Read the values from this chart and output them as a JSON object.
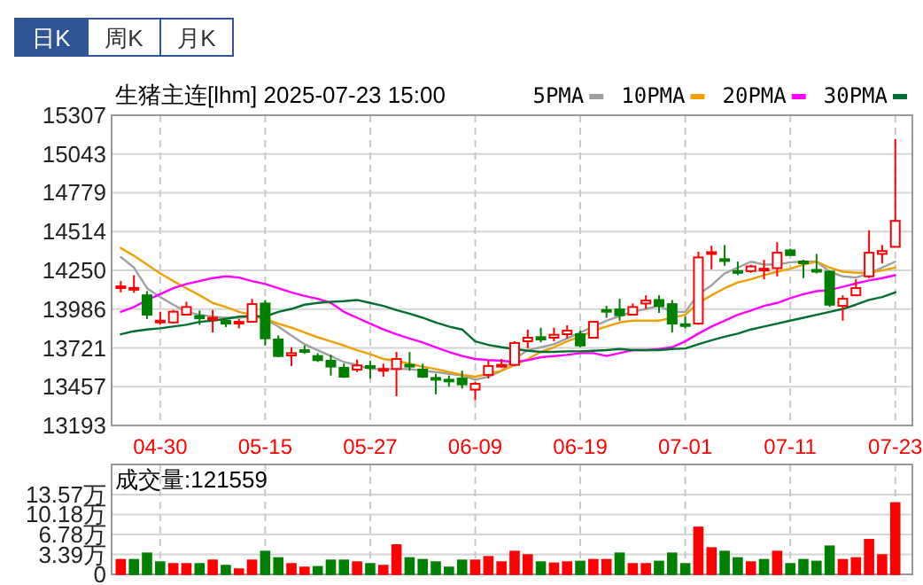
{
  "chart_data": [
    {
      "type": "candlestick",
      "title": "生猪主连[lhm] 2025-07-23 15:00",
      "annotations": [
        "日K",
        "周K",
        "月K"
      ],
      "categories": [
        null,
        null,
        null,
        "04-30",
        null,
        null,
        null,
        null,
        null,
        null,
        null,
        "05-15",
        null,
        null,
        null,
        null,
        null,
        null,
        null,
        "05-27",
        null,
        null,
        null,
        null,
        null,
        null,
        null,
        "06-09",
        null,
        null,
        null,
        null,
        null,
        null,
        null,
        "06-19",
        null,
        null,
        null,
        null,
        null,
        null,
        null,
        "07-01",
        null,
        null,
        null,
        null,
        null,
        null,
        null,
        "07-11",
        null,
        null,
        null,
        null,
        null,
        null,
        null,
        "07-23"
      ],
      "ohlc": [
        [
          14135,
          14177,
          14100,
          14141
        ],
        [
          14122,
          14217,
          14097,
          14130
        ],
        [
          14080,
          14108,
          13919,
          13948
        ],
        [
          13899,
          13968,
          13879,
          13907
        ],
        [
          13895,
          13980,
          13887,
          13968
        ],
        [
          13948,
          14036,
          13944,
          14000
        ],
        [
          13939,
          13976,
          13879,
          13923
        ],
        [
          13915,
          13980,
          13827,
          13927
        ],
        [
          13907,
          13927,
          13863,
          13887
        ],
        [
          13887,
          13919,
          13855,
          13899
        ],
        [
          13899,
          14056,
          13895,
          14020
        ],
        [
          14024,
          14048,
          13738,
          13787
        ],
        [
          13779,
          13807,
          13658,
          13666
        ],
        [
          13670,
          13726,
          13598,
          13686
        ],
        [
          13706,
          13738,
          13682,
          13694
        ],
        [
          13666,
          13686,
          13626,
          13638
        ],
        [
          13634,
          13674,
          13533,
          13594
        ],
        [
          13586,
          13614,
          13517,
          13525
        ],
        [
          13574,
          13642,
          13557,
          13602
        ],
        [
          13598,
          13634,
          13513,
          13586
        ],
        [
          13570,
          13614,
          13525,
          13578
        ],
        [
          13578,
          13694,
          13392,
          13646
        ],
        [
          13606,
          13694,
          13566,
          13598
        ],
        [
          13574,
          13614,
          13517,
          13525
        ],
        [
          13517,
          13545,
          13405,
          13513
        ],
        [
          13505,
          13533,
          13457,
          13497
        ],
        [
          13513,
          13566,
          13445,
          13473
        ],
        [
          13437,
          13489,
          13365,
          13477
        ],
        [
          13537,
          13638,
          13513,
          13598
        ],
        [
          13598,
          13646,
          13586,
          13606
        ],
        [
          13606,
          13767,
          13598,
          13755
        ],
        [
          13767,
          13847,
          13718,
          13791
        ],
        [
          13795,
          13859,
          13759,
          13779
        ],
        [
          13791,
          13859,
          13767,
          13811
        ],
        [
          13815,
          13875,
          13787,
          13839
        ],
        [
          13815,
          13839,
          13726,
          13738
        ],
        [
          13791,
          13907,
          13787,
          13899
        ],
        [
          13980,
          14008,
          13927,
          13972
        ],
        [
          13984,
          14056,
          13907,
          13944
        ],
        [
          13948,
          14024,
          13944,
          14000
        ],
        [
          14024,
          14080,
          13988,
          14044
        ],
        [
          14048,
          14080,
          13960,
          14008
        ],
        [
          14020,
          14048,
          13827,
          13887
        ],
        [
          13883,
          13935,
          13855,
          13875
        ],
        [
          13887,
          14378,
          13879,
          14338
        ],
        [
          14362,
          14418,
          14257,
          14374
        ],
        [
          14326,
          14422,
          14281,
          14318
        ],
        [
          14245,
          14310,
          14217,
          14241
        ],
        [
          14245,
          14289,
          14233,
          14277
        ],
        [
          14249,
          14322,
          14189,
          14261
        ],
        [
          14265,
          14442,
          14209,
          14370
        ],
        [
          14386,
          14398,
          14350,
          14354
        ],
        [
          14310,
          14322,
          14197,
          14302
        ],
        [
          14253,
          14362,
          14229,
          14249
        ],
        [
          14241,
          14245,
          14000,
          14016
        ],
        [
          14008,
          14080,
          13907,
          14056
        ],
        [
          14080,
          14189,
          14076,
          14129
        ],
        [
          14209,
          14523,
          14197,
          14370
        ],
        [
          14362,
          14422,
          14297,
          14382
        ],
        [
          14410,
          15146,
          14410,
          14587
        ]
      ],
      "series": [
        {
          "name": "5PMA",
          "type": "line",
          "color": "#a0a0a0",
          "values": [
            14341,
            14269,
            14128,
            14068,
            14016,
            13967,
            13947,
            13935,
            13927,
            13927,
            13935,
            13919,
            13867,
            13806,
            13746,
            13706,
            13666,
            13625,
            13605,
            13577,
            13577,
            13577,
            13577,
            13565,
            13557,
            13545,
            13533,
            13505,
            13525,
            13565,
            13646,
            13706,
            13726,
            13746,
            13786,
            13827,
            13867,
            13907,
            13939,
            13967,
            13987,
            14008,
            13967,
            13967,
            14088,
            14148,
            14229,
            14269,
            14309,
            14289,
            14289,
            14305,
            14309,
            14309,
            14241,
            14209,
            14201,
            14229,
            14269,
            14309
          ]
        },
        {
          "name": "10PMA",
          "type": "line",
          "color": "#f0a000",
          "values": [
            14402,
            14350,
            14289,
            14229,
            14177,
            14128,
            14080,
            14028,
            14000,
            13967,
            13947,
            13919,
            13887,
            13859,
            13827,
            13794,
            13766,
            13738,
            13706,
            13678,
            13646,
            13634,
            13613,
            13593,
            13577,
            13557,
            13537,
            13525,
            13545,
            13565,
            13605,
            13646,
            13694,
            13726,
            13766,
            13798,
            13839,
            13867,
            13895,
            13907,
            13907,
            13907,
            13927,
            13947,
            14028,
            14080,
            14128,
            14168,
            14189,
            14217,
            14241,
            14261,
            14289,
            14309,
            14269,
            14241,
            14233,
            14233,
            14249,
            14269
          ]
        },
        {
          "name": "20PMA",
          "type": "line",
          "color": "#ff00ff",
          "values": [
            13967,
            14000,
            14048,
            14088,
            14128,
            14157,
            14177,
            14197,
            14209,
            14201,
            14177,
            14157,
            14128,
            14100,
            14076,
            14056,
            14028,
            13967,
            13927,
            13887,
            13847,
            13814,
            13786,
            13758,
            13726,
            13694,
            13666,
            13646,
            13638,
            13634,
            13625,
            13638,
            13658,
            13666,
            13674,
            13686,
            13686,
            13666,
            13686,
            13706,
            13706,
            13714,
            13726,
            13766,
            13819,
            13867,
            13907,
            13947,
            13976,
            14008,
            14028,
            14060,
            14088,
            14108,
            14116,
            14137,
            14161,
            14181,
            14197,
            14217
          ]
        },
        {
          "name": "30PMA",
          "type": "line",
          "color": "#006f2f",
          "values": [
            13814,
            13835,
            13847,
            13855,
            13867,
            13879,
            13899,
            13907,
            13919,
            13935,
            13939,
            13935,
            13967,
            13987,
            14016,
            14028,
            14036,
            14040,
            14048,
            14028,
            14008,
            13979,
            13955,
            13927,
            13895,
            13867,
            13847,
            13766,
            13742,
            13726,
            13714,
            13702,
            13694,
            13694,
            13698,
            13698,
            13702,
            13706,
            13714,
            13706,
            13706,
            13706,
            13714,
            13718,
            13746,
            13774,
            13798,
            13819,
            13847,
            13867,
            13887,
            13907,
            13927,
            13947,
            13967,
            13987,
            14016,
            14048,
            14068,
            14100
          ]
        }
      ],
      "ylim": [
        13193,
        15307
      ],
      "yticks": [
        13193,
        13457,
        13721,
        13986,
        14250,
        14514,
        14779,
        15043,
        15307
      ],
      "grid": true,
      "legend": "top right"
    },
    {
      "type": "bar",
      "title": "成交量:121559",
      "categories": [
        null,
        null,
        null,
        null,
        null,
        null,
        null,
        null,
        null,
        null,
        null,
        null,
        null,
        null,
        null,
        null,
        null,
        null,
        null,
        null,
        null,
        null,
        null,
        null,
        null,
        null,
        null,
        null,
        null,
        null,
        null,
        null,
        null,
        null,
        null,
        null,
        null,
        null,
        null,
        null,
        null,
        null,
        null,
        null,
        null,
        null,
        null,
        null,
        null,
        null,
        null,
        null,
        null,
        null,
        null,
        null,
        null,
        null,
        null,
        null
      ],
      "values": [
        2.5,
        2.5,
        3.6,
        2.1,
        1.8,
        1.8,
        1.8,
        2.4,
        1.5,
        0.9,
        2.4,
        3.9,
        2.8,
        1.8,
        1.2,
        1.3,
        2.4,
        2.4,
        2.1,
        1.8,
        1.5,
        5.0,
        2.8,
        2.5,
        2.1,
        1.2,
        2.4,
        2.4,
        3.0,
        2.1,
        3.9,
        3.3,
        2.1,
        1.9,
        2.1,
        2.2,
        2.5,
        2.5,
        3.6,
        1.8,
        1.8,
        2.2,
        3.6,
        1.8,
        8.0,
        4.5,
        3.9,
        2.8,
        2.1,
        2.5,
        3.9,
        1.8,
        2.5,
        2.2,
        4.8,
        2.5,
        2.8,
        5.9,
        3.3,
        12.1559
      ],
      "colors": [
        "#ff0000",
        "#008000",
        "#008000",
        "#008000",
        "#ff0000",
        "#ff0000",
        "#008000",
        "#ff0000",
        "#008000",
        "#ff0000",
        "#ff0000",
        "#008000",
        "#008000",
        "#ff0000",
        "#ff0000",
        "#008000",
        "#008000",
        "#008000",
        "#ff0000",
        "#008000",
        "#ff0000",
        "#ff0000",
        "#008000",
        "#008000",
        "#008000",
        "#008000",
        "#008000",
        "#ff0000",
        "#ff0000",
        "#ff0000",
        "#ff0000",
        "#ff0000",
        "#008000",
        "#ff0000",
        "#ff0000",
        "#008000",
        "#ff0000",
        "#ff0000",
        "#008000",
        "#ff0000",
        "#ff0000",
        "#008000",
        "#008000",
        "#008000",
        "#ff0000",
        "#ff0000",
        "#008000",
        "#008000",
        "#ff0000",
        "#008000",
        "#ff0000",
        "#008000",
        "#008000",
        "#008000",
        "#008000",
        "#ff0000",
        "#ff0000",
        "#ff0000",
        "#ff0000",
        "#ff0000"
      ],
      "ylim": [
        0,
        13.57
      ],
      "yticks": [
        0,
        {
          "value": 3.39,
          "label": "3.39万"
        },
        {
          "value": 6.78,
          "label": "6.78万"
        },
        {
          "value": 10.18,
          "label": "10.18万"
        },
        {
          "value": 13.57,
          "label": "13.57万"
        }
      ],
      "grid": true,
      "tick_labels": "y"
    }
  ]
}
